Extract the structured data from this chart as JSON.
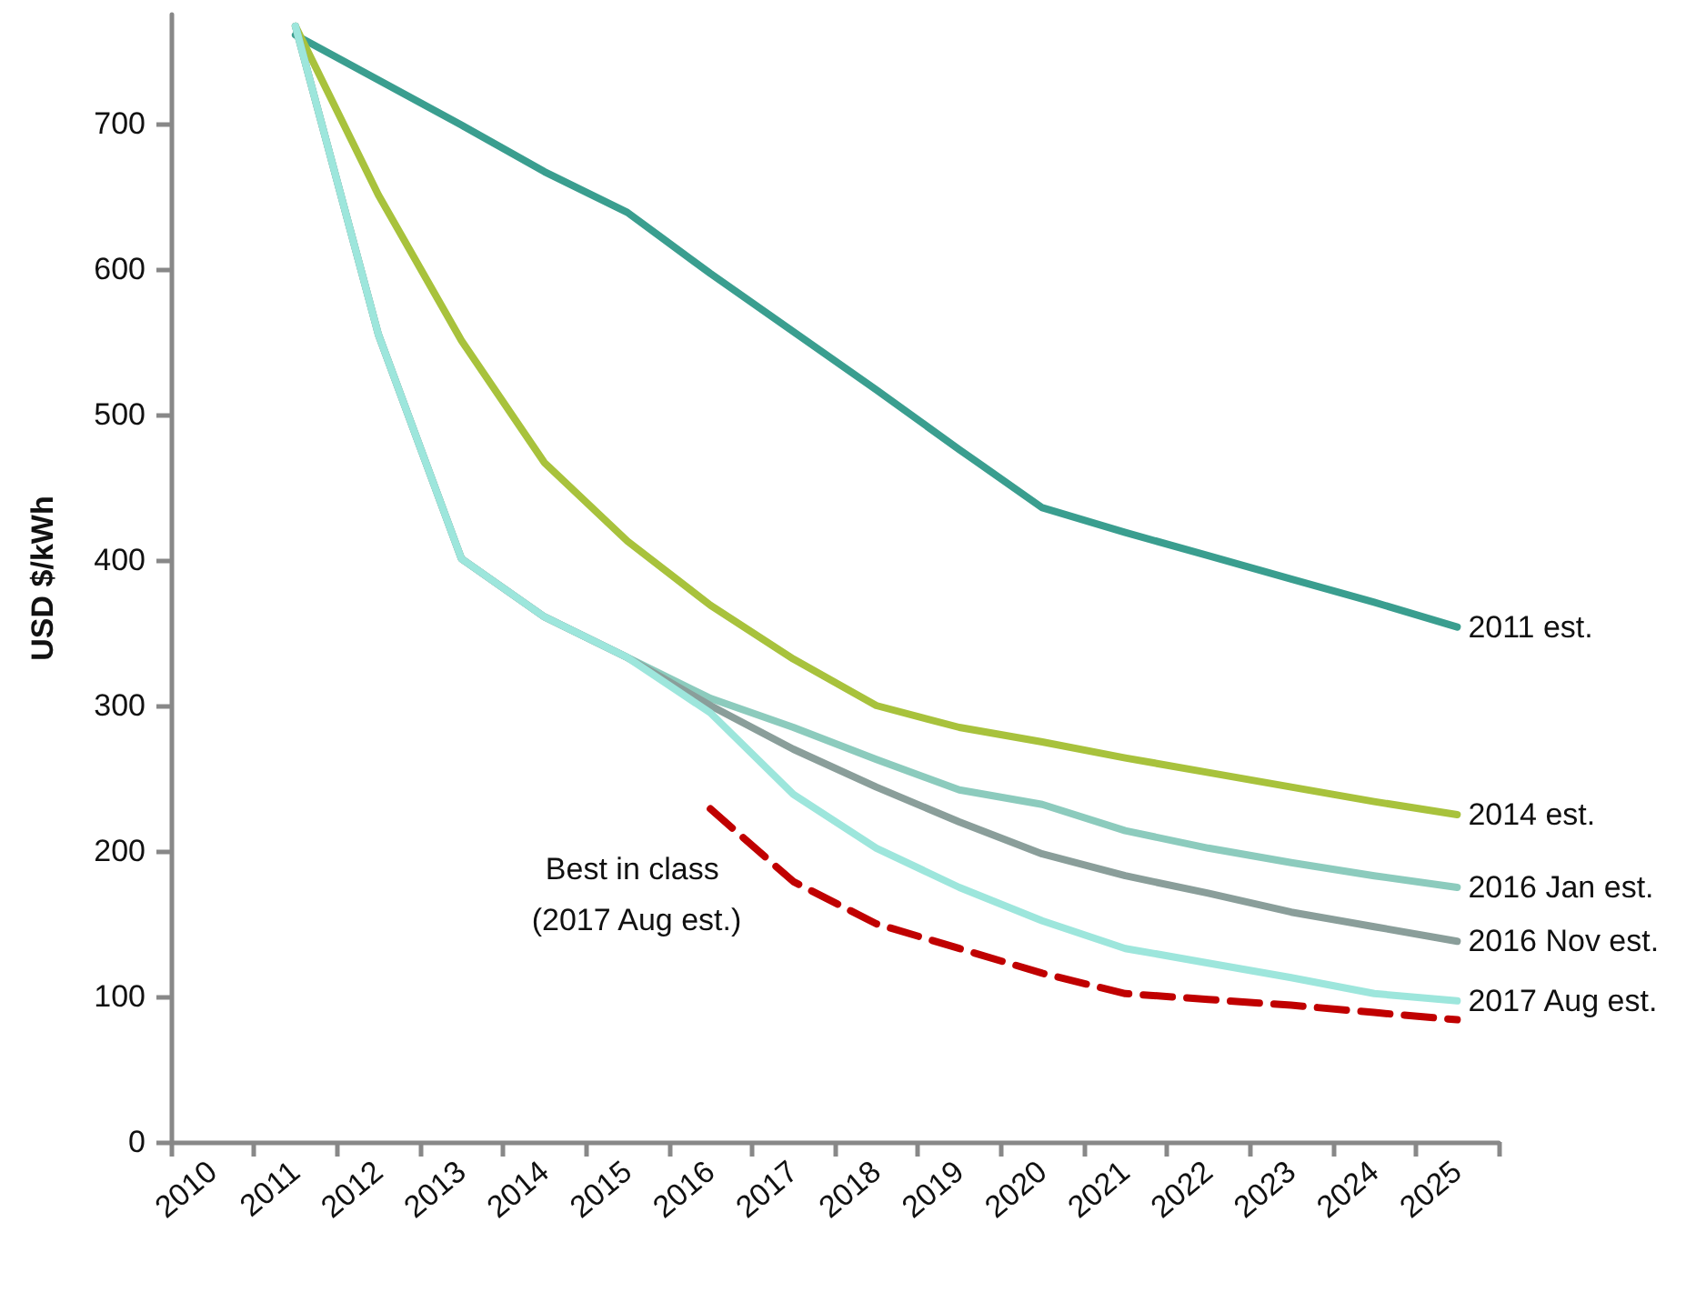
{
  "chart_data": {
    "type": "line",
    "ylabel": "USD $/kWh",
    "categories": [
      "2010",
      "2011",
      "2012",
      "2013",
      "2014",
      "2015",
      "2016",
      "2017",
      "2018",
      "2019",
      "2020",
      "2021",
      "2022",
      "2023",
      "2024",
      "2025"
    ],
    "ylim": [
      0,
      775
    ],
    "yticks": [
      0,
      100,
      200,
      300,
      400,
      500,
      600,
      700
    ],
    "grid": false,
    "legend": false,
    "marker": "none",
    "line_style": "solid",
    "series": [
      {
        "name": "2011 est.",
        "color": "#3a9e8f",
        "values": [
          null,
          761,
          730,
          699,
          667,
          639,
          597,
          557,
          517,
          476,
          436,
          419,
          403,
          387,
          371,
          354
        ]
      },
      {
        "name": "2014 est.",
        "color": "#a8c23c",
        "values": [
          null,
          767,
          651,
          551,
          467,
          413,
          369,
          332,
          300,
          285,
          275,
          264,
          254,
          244,
          234,
          225
        ]
      },
      {
        "name": "2016 Jan est.",
        "color": "#8ccbbd",
        "values": [
          null,
          767,
          555,
          401,
          361,
          333,
          305,
          285,
          263,
          242,
          232,
          214,
          202,
          192,
          183,
          175
        ]
      },
      {
        "name": "2016 Nov est.",
        "color": "#8a9e9a",
        "values": [
          null,
          767,
          555,
          401,
          361,
          333,
          300,
          270,
          244,
          220,
          198,
          183,
          171,
          158,
          148,
          138
        ]
      },
      {
        "name": "2017 Aug est.",
        "color": "#9de6dc",
        "values": [
          null,
          767,
          555,
          401,
          361,
          333,
          295,
          239,
          202,
          175,
          152,
          133,
          123,
          113,
          102,
          97
        ]
      },
      {
        "color": "#c00000",
        "line_style": "dashed",
        "values": [
          null,
          null,
          null,
          null,
          null,
          null,
          229,
          179,
          150,
          133,
          116,
          102,
          98,
          94,
          89,
          84
        ]
      }
    ],
    "annotations": [
      "Best in class (2017 Aug est.)"
    ]
  }
}
